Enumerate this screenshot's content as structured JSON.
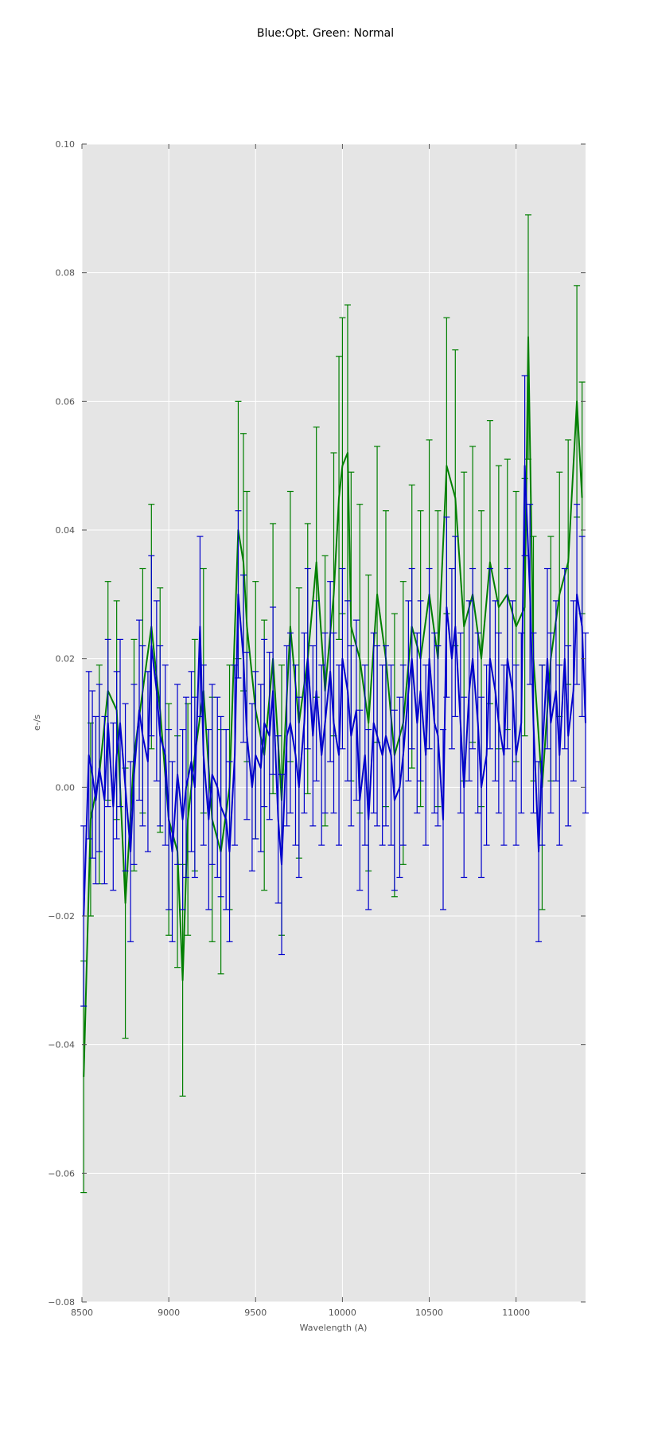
{
  "chart_data": {
    "type": "line",
    "title": "Blue:Opt. Green: Normal",
    "xlabel": "Wavelength (A)",
    "ylabel": "e-/s",
    "xlim": [
      8500,
      11400
    ],
    "ylim": [
      -0.08,
      0.1
    ],
    "xticks": [
      8500,
      9000,
      9500,
      10000,
      10500,
      11000
    ],
    "xtick_labels": [
      "8500",
      "9000",
      "9500",
      "10000",
      "10500",
      "11000"
    ],
    "yticks": [
      -0.08,
      -0.06,
      -0.04,
      -0.02,
      0.0,
      0.02,
      0.04,
      0.06,
      0.08,
      0.1
    ],
    "ytick_labels": [
      "−0.08",
      "−0.06",
      "−0.04",
      "−0.02",
      "0.00",
      "0.02",
      "0.04",
      "0.06",
      "0.08",
      "0.10"
    ],
    "grid": true,
    "background": "#e5e5e5",
    "error_bars": true,
    "series": [
      {
        "color": "#007f00",
        "x": [
          8510,
          8550,
          8600,
          8650,
          8700,
          8750,
          8800,
          8850,
          8900,
          8950,
          9000,
          9050,
          9080,
          9110,
          9150,
          9200,
          9250,
          9300,
          9350,
          9400,
          9430,
          9450,
          9500,
          9550,
          9600,
          9650,
          9700,
          9750,
          9800,
          9850,
          9900,
          9950,
          9980,
          10000,
          10030,
          10050,
          10100,
          10150,
          10200,
          10250,
          10300,
          10350,
          10400,
          10450,
          10500,
          10550,
          10600,
          10650,
          10700,
          10750,
          10800,
          10850,
          10900,
          10950,
          11000,
          11050,
          11070,
          11100,
          11150,
          11200,
          11250,
          11300,
          11350,
          11380
        ],
        "y": [
          -0.045,
          -0.005,
          0.002,
          0.015,
          0.012,
          -0.018,
          0.005,
          0.015,
          0.025,
          0.012,
          -0.005,
          -0.01,
          -0.03,
          -0.005,
          0.005,
          0.015,
          -0.005,
          -0.01,
          0.0,
          0.04,
          0.035,
          0.025,
          0.012,
          0.005,
          0.02,
          -0.002,
          0.025,
          0.01,
          0.02,
          0.035,
          0.015,
          0.03,
          0.045,
          0.05,
          0.052,
          0.025,
          0.02,
          0.01,
          0.03,
          0.02,
          0.005,
          0.01,
          0.025,
          0.02,
          0.03,
          0.02,
          0.05,
          0.045,
          0.025,
          0.03,
          0.02,
          0.035,
          0.028,
          0.03,
          0.025,
          0.028,
          0.07,
          0.02,
          0.0,
          0.02,
          0.03,
          0.035,
          0.06,
          0.045
        ],
        "err": [
          0.018,
          0.015,
          0.017,
          0.017,
          0.017,
          0.021,
          0.018,
          0.019,
          0.019,
          0.019,
          0.018,
          0.018,
          0.018,
          0.018,
          0.018,
          0.019,
          0.019,
          0.019,
          0.019,
          0.02,
          0.02,
          0.021,
          0.02,
          0.021,
          0.021,
          0.021,
          0.021,
          0.021,
          0.021,
          0.021,
          0.021,
          0.022,
          0.022,
          0.023,
          0.023,
          0.024,
          0.024,
          0.023,
          0.023,
          0.023,
          0.022,
          0.022,
          0.022,
          0.023,
          0.024,
          0.023,
          0.023,
          0.023,
          0.024,
          0.023,
          0.023,
          0.022,
          0.022,
          0.021,
          0.021,
          0.02,
          0.019,
          0.019,
          0.019,
          0.019,
          0.019,
          0.019,
          0.018,
          0.018
        ]
      },
      {
        "color": "#0000cc",
        "x": [
          8510,
          8540,
          8560,
          8580,
          8600,
          8630,
          8650,
          8680,
          8700,
          8720,
          8750,
          8780,
          8800,
          8830,
          8850,
          8880,
          8900,
          8930,
          8950,
          8980,
          9000,
          9020,
          9050,
          9080,
          9100,
          9130,
          9150,
          9180,
          9200,
          9230,
          9250,
          9280,
          9300,
          9330,
          9350,
          9380,
          9400,
          9430,
          9450,
          9480,
          9500,
          9530,
          9550,
          9580,
          9600,
          9630,
          9650,
          9680,
          9700,
          9730,
          9750,
          9780,
          9800,
          9830,
          9850,
          9880,
          9900,
          9930,
          9950,
          9980,
          10000,
          10030,
          10050,
          10080,
          10100,
          10130,
          10150,
          10180,
          10200,
          10230,
          10250,
          10280,
          10300,
          10330,
          10350,
          10380,
          10400,
          10430,
          10450,
          10480,
          10500,
          10530,
          10550,
          10580,
          10600,
          10630,
          10650,
          10680,
          10700,
          10730,
          10750,
          10780,
          10800,
          10830,
          10850,
          10880,
          10900,
          10930,
          10950,
          10980,
          11000,
          11030,
          11050,
          11080,
          11100,
          11130,
          11150,
          11180,
          11200,
          11230,
          11250,
          11280,
          11300,
          11330,
          11350,
          11380,
          11400
        ],
        "y": [
          -0.02,
          0.005,
          0.002,
          -0.002,
          0.003,
          -0.002,
          0.01,
          -0.003,
          0.005,
          0.01,
          0.0,
          -0.01,
          0.002,
          0.012,
          0.008,
          0.004,
          0.022,
          0.015,
          0.008,
          0.005,
          -0.005,
          -0.01,
          0.002,
          -0.005,
          0.0,
          0.004,
          0.0,
          0.025,
          0.005,
          -0.005,
          0.002,
          0.0,
          -0.003,
          -0.005,
          -0.01,
          0.005,
          0.03,
          0.02,
          0.008,
          0.0,
          0.005,
          0.003,
          0.01,
          0.008,
          0.015,
          -0.005,
          -0.012,
          0.008,
          0.01,
          0.005,
          0.0,
          0.01,
          0.02,
          0.008,
          0.015,
          0.005,
          0.01,
          0.018,
          0.01,
          0.005,
          0.02,
          0.015,
          0.008,
          0.012,
          -0.002,
          0.005,
          -0.005,
          0.01,
          0.008,
          0.005,
          0.008,
          0.005,
          -0.002,
          0.0,
          0.005,
          0.015,
          0.02,
          0.01,
          0.015,
          0.005,
          0.02,
          0.01,
          0.008,
          -0.005,
          0.028,
          0.02,
          0.025,
          0.01,
          0.0,
          0.015,
          0.02,
          0.01,
          0.0,
          0.005,
          0.02,
          0.015,
          0.01,
          0.005,
          0.02,
          0.015,
          0.005,
          0.01,
          0.05,
          0.03,
          0.01,
          -0.01,
          0.005,
          0.02,
          0.01,
          0.015,
          0.005,
          0.02,
          0.008,
          0.015,
          0.03,
          0.025,
          0.01
        ],
        "err": [
          0.014,
          0.013,
          0.013,
          0.013,
          0.013,
          0.013,
          0.013,
          0.013,
          0.013,
          0.013,
          0.013,
          0.014,
          0.014,
          0.014,
          0.014,
          0.014,
          0.014,
          0.014,
          0.014,
          0.014,
          0.014,
          0.014,
          0.014,
          0.014,
          0.014,
          0.014,
          0.014,
          0.014,
          0.014,
          0.014,
          0.014,
          0.014,
          0.014,
          0.014,
          0.014,
          0.014,
          0.013,
          0.013,
          0.013,
          0.013,
          0.013,
          0.013,
          0.013,
          0.013,
          0.013,
          0.013,
          0.014,
          0.014,
          0.014,
          0.014,
          0.014,
          0.014,
          0.014,
          0.014,
          0.014,
          0.014,
          0.014,
          0.014,
          0.014,
          0.014,
          0.014,
          0.014,
          0.014,
          0.014,
          0.014,
          0.014,
          0.014,
          0.014,
          0.014,
          0.014,
          0.014,
          0.014,
          0.014,
          0.014,
          0.014,
          0.014,
          0.014,
          0.014,
          0.014,
          0.014,
          0.014,
          0.014,
          0.014,
          0.014,
          0.014,
          0.014,
          0.014,
          0.014,
          0.014,
          0.014,
          0.014,
          0.014,
          0.014,
          0.014,
          0.014,
          0.014,
          0.014,
          0.014,
          0.014,
          0.014,
          0.014,
          0.014,
          0.014,
          0.014,
          0.014,
          0.014,
          0.014,
          0.014,
          0.014,
          0.014,
          0.014,
          0.014,
          0.014,
          0.014,
          0.014,
          0.014,
          0.014
        ]
      }
    ]
  }
}
